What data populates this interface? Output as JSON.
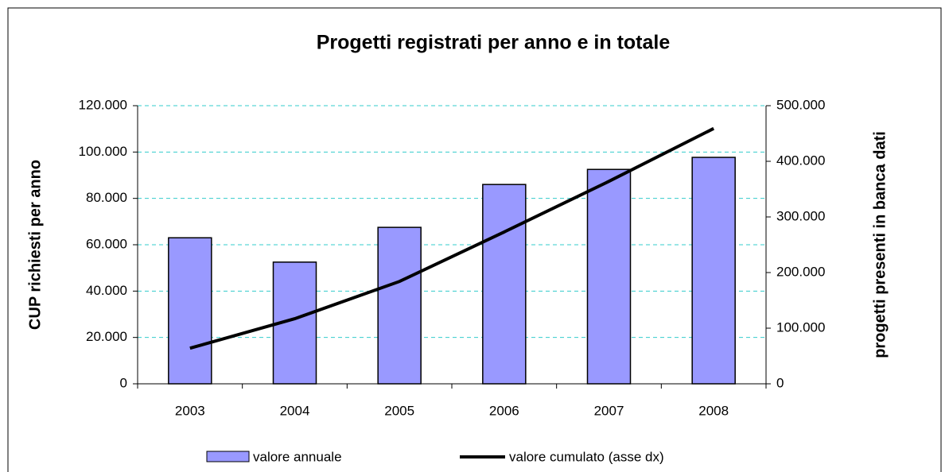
{
  "chart_data": {
    "type": "bar",
    "title": "Progetti registrati per anno e in totale",
    "y_label": "CUP richiesti per anno",
    "y2_label": "progetti presenti in banca dati",
    "categories": [
      "2003",
      "2004",
      "2005",
      "2006",
      "2007",
      "2008"
    ],
    "series": [
      {
        "name": "valore annuale",
        "type": "bar",
        "color": "#9999ff",
        "values": [
          63000,
          52500,
          67500,
          86000,
          92500,
          97700
        ]
      },
      {
        "name": "valore cumulato (asse dx)",
        "type": "line",
        "color": "#000000",
        "axis": "y2",
        "values": [
          64000,
          117000,
          184000,
          273000,
          364000,
          459000
        ]
      }
    ],
    "ylim": [
      0,
      120000
    ],
    "yticks": [
      0,
      {
        "value": 20000,
        "label": "20.000"
      },
      {
        "value": 40000,
        "label": "40.000"
      },
      {
        "value": 60000,
        "label": "60.000"
      },
      {
        "value": 80000,
        "label": "80.000"
      },
      {
        "value": 100000,
        "label": "100.000"
      },
      {
        "value": 120000,
        "label": "120.000"
      }
    ],
    "y2lim": [
      0,
      500000
    ],
    "y2ticks": [
      0,
      {
        "value": 100000,
        "label": "100.000"
      },
      {
        "value": 200000,
        "label": "200.000"
      },
      {
        "value": 300000,
        "label": "300.000"
      },
      {
        "value": 400000,
        "label": "400.000"
      },
      {
        "value": 500000,
        "label": "500.000"
      }
    ],
    "grid": true,
    "legend": "bottom"
  }
}
